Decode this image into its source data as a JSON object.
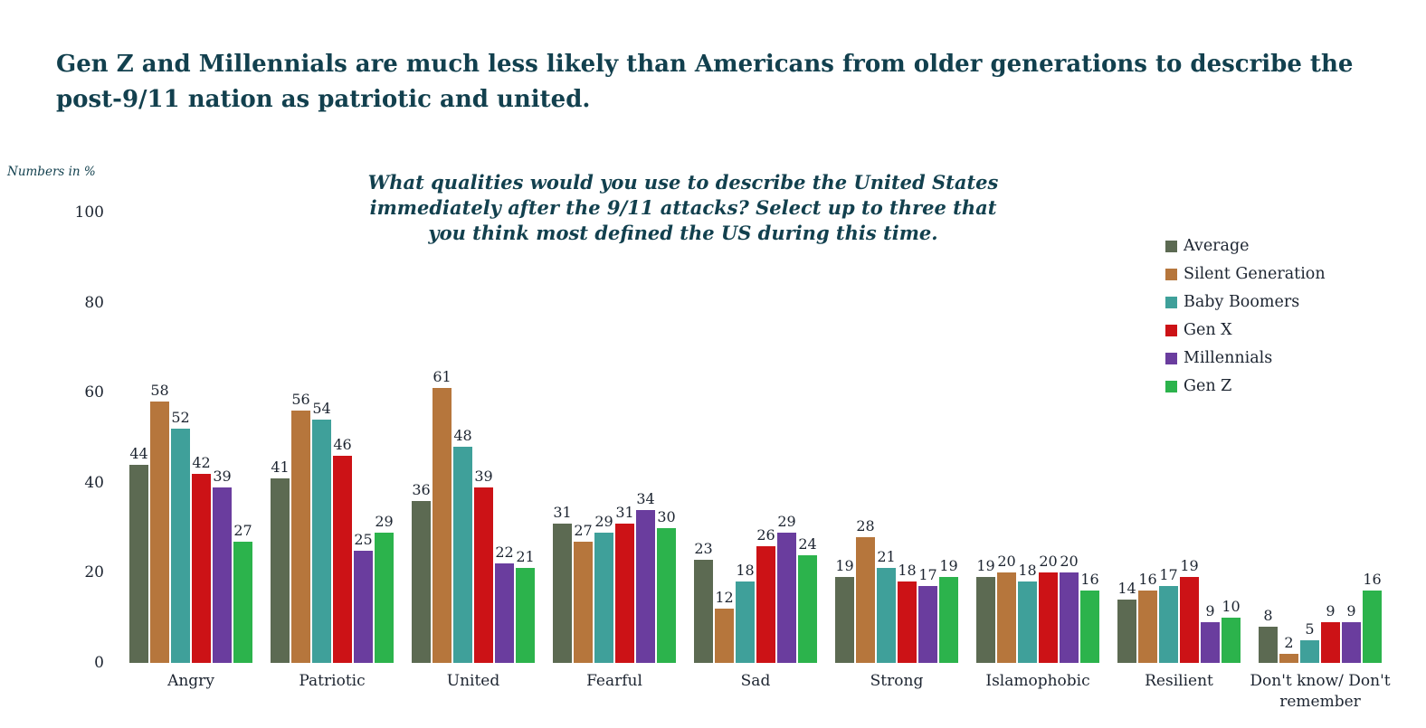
{
  "title": "Gen Z and Millennials are much less likely than Americans from older generations to describe the post-9/11 nation as patriotic and united.",
  "axis_note": "Numbers in %",
  "chart_data": {
    "type": "bar",
    "title": "What qualities would you use to describe the United States immediately after the 9/11 attacks? Select up to three that you think most defined the US during this time.",
    "categories": [
      "Angry",
      "Patriotic",
      "United",
      "Fearful",
      "Sad",
      "Strong",
      "Islamophobic",
      "Resilient",
      "Don't know/ Don't remember"
    ],
    "series": [
      {
        "name": "Average",
        "color": "#5c6a52",
        "values": [
          44,
          41,
          36,
          31,
          23,
          19,
          19,
          14,
          8
        ]
      },
      {
        "name": "Silent Generation",
        "color": "#b6763c",
        "values": [
          58,
          56,
          61,
          27,
          12,
          28,
          20,
          16,
          2
        ]
      },
      {
        "name": "Baby Boomers",
        "color": "#3fa09a",
        "values": [
          52,
          54,
          48,
          29,
          18,
          21,
          18,
          17,
          5
        ]
      },
      {
        "name": "Gen X",
        "color": "#cc1216",
        "values": [
          42,
          46,
          39,
          31,
          26,
          18,
          20,
          19,
          9
        ]
      },
      {
        "name": "Millennials",
        "color": "#6a3d9e",
        "values": [
          39,
          25,
          22,
          34,
          29,
          17,
          20,
          9,
          9
        ]
      },
      {
        "name": "Gen Z",
        "color": "#2cb34c",
        "values": [
          27,
          29,
          21,
          30,
          24,
          19,
          16,
          10,
          16
        ]
      }
    ],
    "xlabel": "",
    "ylabel": "Numbers in %",
    "ylim": [
      0,
      100
    ],
    "yticks": [
      0,
      20,
      40,
      60,
      80,
      100
    ],
    "legend_position": "right",
    "grid": false,
    "value_labels": true
  }
}
